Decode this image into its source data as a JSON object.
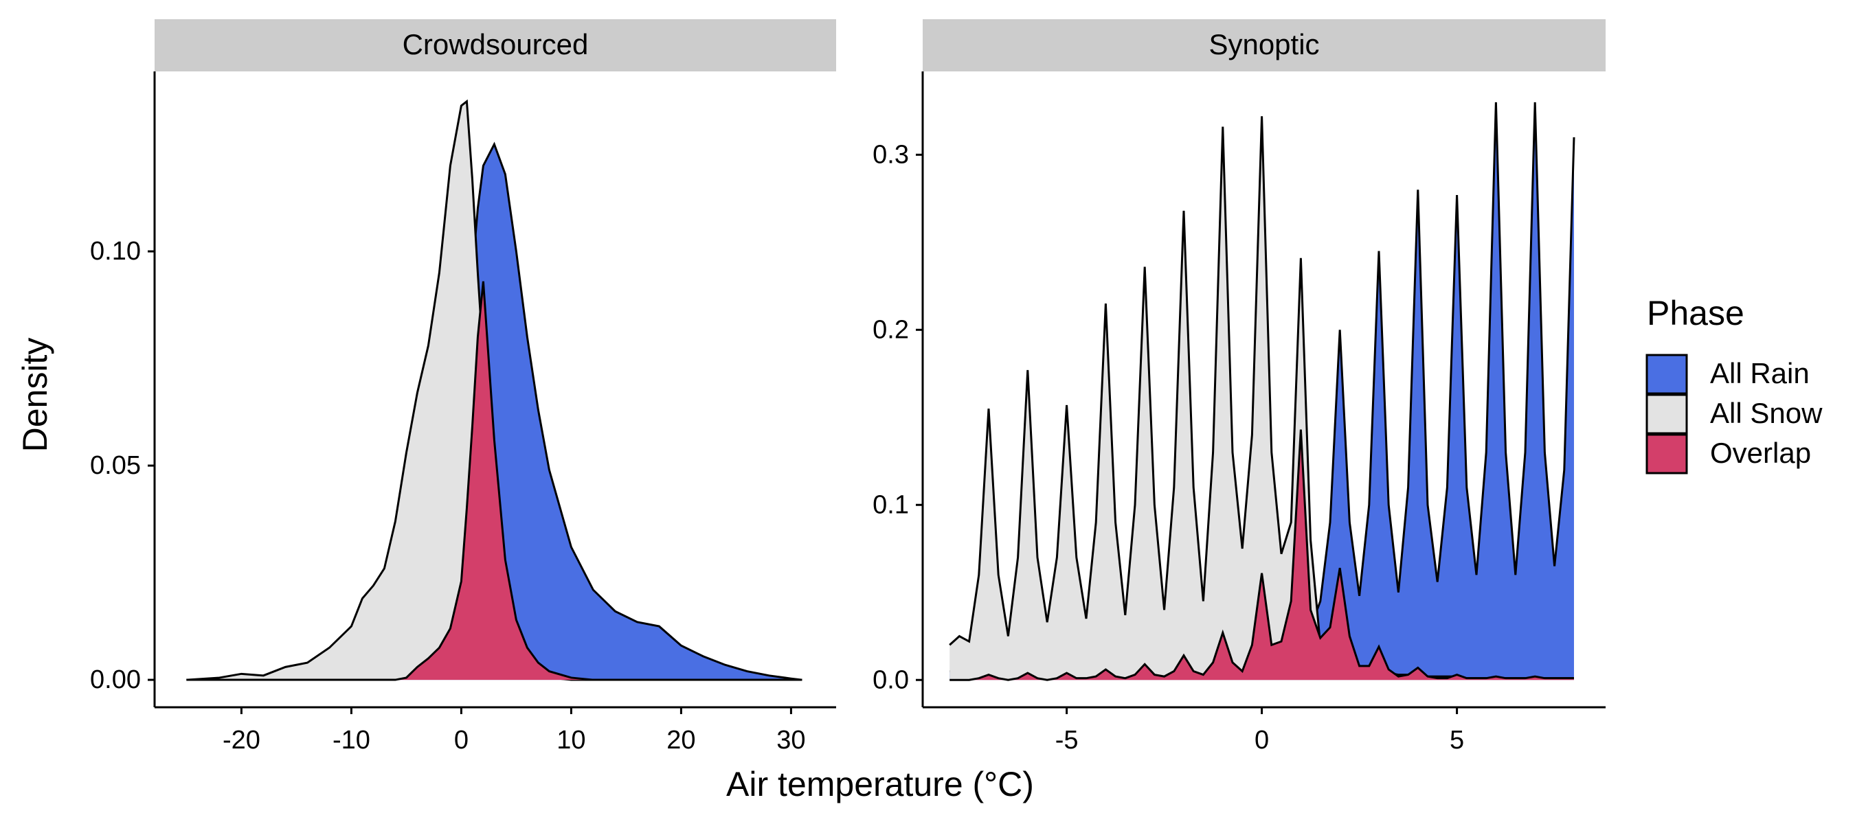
{
  "xlabel": "Air temperature (°C)",
  "ylabel": "Density",
  "legend": {
    "title": "Phase",
    "position": "right"
  },
  "chart_data": [
    {
      "type": "area",
      "title": "Crowdsourced",
      "x": [
        -25,
        -22,
        -20,
        -18,
        -16,
        -14,
        -12,
        -10,
        -9,
        -8,
        -7,
        -6,
        -5,
        -4,
        -3,
        -2,
        -1,
        0,
        0.5,
        1,
        1.5,
        2,
        3,
        4,
        5,
        6,
        7,
        8,
        10,
        12,
        14,
        16,
        18,
        20,
        22,
        24,
        26,
        28,
        30,
        31
      ],
      "series": [
        {
          "name": "All Rain",
          "color": "#4a6fe3",
          "values": [
            0,
            0,
            0,
            0,
            0,
            0,
            0,
            0,
            0,
            0.001,
            0.002,
            0.003,
            0.005,
            0.008,
            0.012,
            0.02,
            0.035,
            0.06,
            0.075,
            0.095,
            0.11,
            0.12,
            0.125,
            0.118,
            0.1,
            0.08,
            0.063,
            0.049,
            0.031,
            0.021,
            0.016,
            0.0135,
            0.0125,
            0.008,
            0.0055,
            0.0035,
            0.002,
            0.001,
            0.0003,
            0
          ]
        },
        {
          "name": "All Snow",
          "color": "#e3e3e3",
          "values": [
            0,
            0.0005,
            0.0014,
            0.001,
            0.003,
            0.004,
            0.0075,
            0.0125,
            0.019,
            0.022,
            0.026,
            0.037,
            0.053,
            0.067,
            0.078,
            0.095,
            0.12,
            0.134,
            0.135,
            0.117,
            0.095,
            0.075,
            0.034,
            0.012,
            0.005,
            0.002,
            0.001,
            0.0005,
            0,
            0,
            0,
            0,
            0,
            0,
            0,
            0,
            0,
            0,
            0,
            0
          ]
        },
        {
          "name": "Overlap",
          "color": "#d33f6a",
          "values": [
            0,
            0,
            0,
            0,
            0,
            0,
            0,
            0,
            0,
            0,
            0,
            0,
            0.0005,
            0.003,
            0.005,
            0.0075,
            0.012,
            0.023,
            0.04,
            0.059,
            0.08,
            0.093,
            0.056,
            0.028,
            0.014,
            0.0075,
            0.004,
            0.002,
            0.0005,
            0,
            0,
            0,
            0,
            0,
            0,
            0,
            0,
            0,
            0,
            0
          ]
        }
      ],
      "xlim": [
        -27.9,
        34.1
      ],
      "ylim": [
        -0.0064,
        0.142
      ],
      "xticks": [
        -20,
        -10,
        0,
        10,
        20,
        30
      ],
      "yticks": [
        {
          "value": 0,
          "label": "0.00"
        },
        {
          "value": 0.05,
          "label": "0.05"
        },
        {
          "value": 0.1,
          "label": "0.10"
        }
      ]
    },
    {
      "type": "area",
      "title": "Synoptic",
      "x": [
        -8,
        -7.75,
        -7.5,
        -7.25,
        -7,
        -6.75,
        -6.5,
        -6.25,
        -6,
        -5.75,
        -5.5,
        -5.25,
        -5,
        -4.75,
        -4.5,
        -4.25,
        -4,
        -3.75,
        -3.5,
        -3.25,
        -3,
        -2.75,
        -2.5,
        -2.25,
        -2,
        -1.75,
        -1.5,
        -1.25,
        -1,
        -0.75,
        -0.5,
        -0.25,
        0,
        0.25,
        0.5,
        0.75,
        1,
        1.25,
        1.5,
        1.75,
        2,
        2.25,
        2.5,
        2.75,
        3,
        3.25,
        3.5,
        3.75,
        4,
        4.25,
        4.5,
        4.75,
        5,
        5.25,
        5.5,
        5.75,
        6,
        6.25,
        6.5,
        6.75,
        7,
        7.25,
        7.5,
        7.75,
        8
      ],
      "series": [
        {
          "name": "All Rain",
          "color": "#4a6fe3",
          "values": [
            0.005,
            0.005,
            0.005,
            0.006,
            0.01,
            0.006,
            0.005,
            0.006,
            0.01,
            0.006,
            0.005,
            0.006,
            0.01,
            0.007,
            0.006,
            0.008,
            0.014,
            0.008,
            0.007,
            0.01,
            0.018,
            0.01,
            0.008,
            0.012,
            0.022,
            0.012,
            0.01,
            0.016,
            0.03,
            0.016,
            0.012,
            0.02,
            0.04,
            0.02,
            0.018,
            0.03,
            0.06,
            0.03,
            0.045,
            0.09,
            0.2,
            0.09,
            0.048,
            0.1,
            0.245,
            0.1,
            0.05,
            0.11,
            0.28,
            0.1,
            0.056,
            0.11,
            0.277,
            0.11,
            0.06,
            0.13,
            0.33,
            0.13,
            0.06,
            0.13,
            0.33,
            0.13,
            0.065,
            0.12,
            0.31
          ]
        },
        {
          "name": "All Snow",
          "color": "#e3e3e3",
          "values": [
            0.02,
            0.025,
            0.022,
            0.06,
            0.155,
            0.06,
            0.025,
            0.07,
            0.177,
            0.07,
            0.033,
            0.07,
            0.157,
            0.07,
            0.035,
            0.09,
            0.215,
            0.09,
            0.037,
            0.1,
            0.236,
            0.1,
            0.04,
            0.11,
            0.268,
            0.11,
            0.045,
            0.13,
            0.316,
            0.13,
            0.075,
            0.14,
            0.322,
            0.13,
            0.072,
            0.09,
            0.241,
            0.08,
            0.02,
            0.012,
            0.01,
            0.008,
            0.006,
            0.005,
            0.005,
            0.004,
            0.003,
            0.003,
            0.003,
            0.002,
            0.002,
            0.002,
            0.002,
            0.001,
            0.001,
            0.001,
            0.001,
            0.001,
            0.001,
            0.001,
            0.001,
            0.001,
            0.001,
            0.001,
            0.001
          ]
        },
        {
          "name": "Overlap",
          "color": "#d33f6a",
          "values": [
            0,
            0,
            0,
            0.001,
            0.003,
            0.001,
            0,
            0.001,
            0.004,
            0.001,
            0,
            0.001,
            0.004,
            0.001,
            0.001,
            0.002,
            0.006,
            0.002,
            0.001,
            0.003,
            0.009,
            0.003,
            0.002,
            0.005,
            0.014,
            0.005,
            0.003,
            0.01,
            0.027,
            0.01,
            0.005,
            0.02,
            0.061,
            0.02,
            0.022,
            0.045,
            0.143,
            0.04,
            0.024,
            0.03,
            0.064,
            0.025,
            0.008,
            0.008,
            0.019,
            0.006,
            0.002,
            0.003,
            0.007,
            0.002,
            0.001,
            0.001,
            0.003,
            0.001,
            0.001,
            0.001,
            0.002,
            0.001,
            0.001,
            0.001,
            0.002,
            0.001,
            0.001,
            0.001,
            0.001
          ]
        }
      ],
      "xlim": [
        -8.69,
        8.81
      ],
      "ylim": [
        -0.0156,
        0.3476
      ],
      "xticks": [
        -5,
        0,
        5
      ],
      "yticks": [
        {
          "value": 0,
          "label": "0.0"
        },
        0.1,
        0.2,
        0.3
      ]
    }
  ]
}
